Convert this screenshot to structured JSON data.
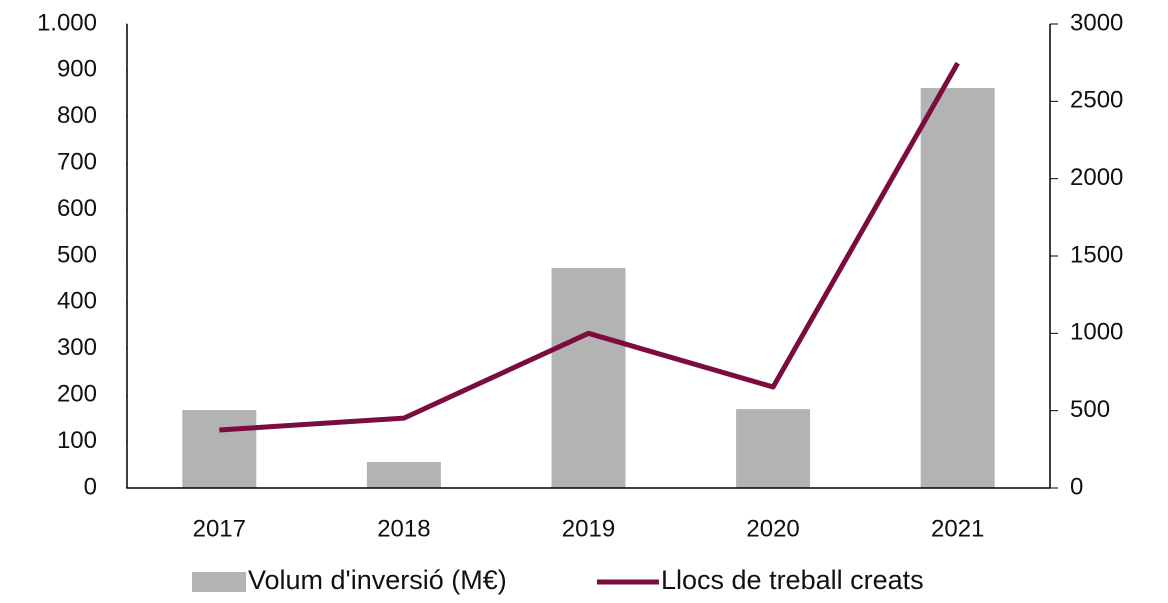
{
  "chart_data": {
    "type": "bar_line",
    "categories": [
      "2017",
      "2018",
      "2019",
      "2020",
      "2021"
    ],
    "series": [
      {
        "name": "Volum d'inversió (M€)",
        "type": "bar",
        "color": "#b3b3b3",
        "values": [
          168,
          56,
          474,
          170,
          862
        ]
      },
      {
        "name": "Llocs de treball creats",
        "type": "line",
        "axis": "y2",
        "color": "#7a0d3e",
        "values": [
          375,
          452,
          1000,
          653,
          2747
        ]
      }
    ],
    "ylim": [
      0,
      1000
    ],
    "yticks": [
      0,
      100,
      200,
      300,
      400,
      500,
      600,
      700,
      800,
      900,
      {
        "value": 1000,
        "label": "1.000"
      }
    ],
    "y2lim": [
      0,
      3000
    ],
    "y2ticks": [
      0,
      500,
      1000,
      1500,
      2000,
      2500,
      3000
    ],
    "legend": "bottom"
  }
}
